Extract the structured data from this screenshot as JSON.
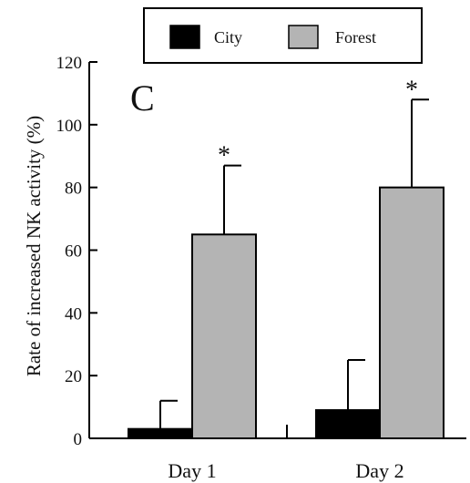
{
  "chart_data": {
    "type": "bar",
    "panel_label": "C",
    "categories": [
      "Day 1",
      "Day 2"
    ],
    "series": [
      {
        "name": "City",
        "color": "#000000",
        "values": [
          3,
          9
        ],
        "error": [
          9,
          16
        ]
      },
      {
        "name": "Forest",
        "color": "#b4b4b4",
        "values": [
          65,
          80
        ],
        "error": [
          22,
          28
        ]
      }
    ],
    "significance": [
      {
        "category": "Day 1",
        "series": "Forest",
        "mark": "*"
      },
      {
        "category": "Day 2",
        "series": "Forest",
        "mark": "*"
      }
    ],
    "ylabel": "Rate of increased NK activity (%)",
    "xlabel": "",
    "ylim": [
      0,
      120
    ],
    "yticks": [
      0,
      20,
      40,
      60,
      80,
      100,
      120
    ],
    "legend_position": "top",
    "grid": false
  }
}
